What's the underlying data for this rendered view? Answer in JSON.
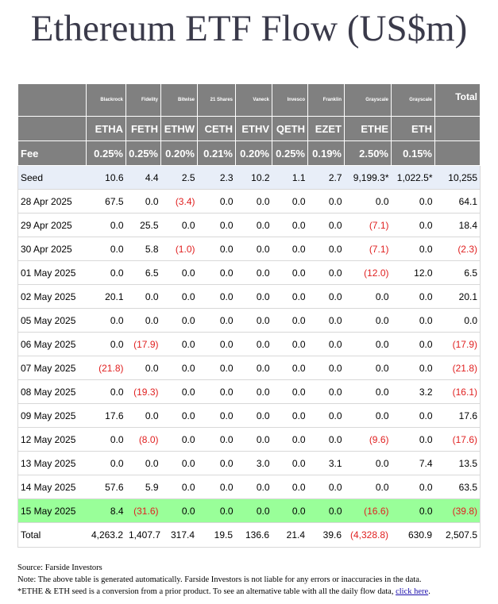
{
  "title": "Ethereum ETF Flow (US$m)",
  "issuers": [
    "Blackrock",
    "Fidelity",
    "Bitwise",
    "21 Shares",
    "Vaneck",
    "Invesco",
    "Franklin",
    "Grayscale",
    "Grayscale"
  ],
  "total_label": "Total",
  "tickers": [
    "ETHA",
    "FETH",
    "ETHW",
    "CETH",
    "ETHV",
    "QETH",
    "EZET",
    "ETHE",
    "ETH"
  ],
  "fee_label": "Fee",
  "fees": [
    "0.25%",
    "0.25%",
    "0.20%",
    "0.21%",
    "0.20%",
    "0.25%",
    "0.19%",
    "2.50%",
    "0.15%"
  ],
  "rows": [
    {
      "label": "Seed",
      "values": [
        "10.6",
        "4.4",
        "2.5",
        "2.3",
        "10.2",
        "1.1",
        "2.7",
        "9,199.3*",
        "1,022.5*"
      ],
      "total": "10,255"
    },
    {
      "label": "28 Apr 2025",
      "values": [
        "67.5",
        "0.0",
        "(3.4)",
        "0.0",
        "0.0",
        "0.0",
        "0.0",
        "0.0",
        "0.0"
      ],
      "total": "64.1"
    },
    {
      "label": "29 Apr 2025",
      "values": [
        "0.0",
        "25.5",
        "0.0",
        "0.0",
        "0.0",
        "0.0",
        "0.0",
        "(7.1)",
        "0.0"
      ],
      "total": "18.4"
    },
    {
      "label": "30 Apr 2025",
      "values": [
        "0.0",
        "5.8",
        "(1.0)",
        "0.0",
        "0.0",
        "0.0",
        "0.0",
        "(7.1)",
        "0.0"
      ],
      "total": "(2.3)"
    },
    {
      "label": "01 May 2025",
      "values": [
        "0.0",
        "6.5",
        "0.0",
        "0.0",
        "0.0",
        "0.0",
        "0.0",
        "(12.0)",
        "12.0"
      ],
      "total": "6.5"
    },
    {
      "label": "02 May 2025",
      "values": [
        "20.1",
        "0.0",
        "0.0",
        "0.0",
        "0.0",
        "0.0",
        "0.0",
        "0.0",
        "0.0"
      ],
      "total": "20.1"
    },
    {
      "label": "05 May 2025",
      "values": [
        "0.0",
        "0.0",
        "0.0",
        "0.0",
        "0.0",
        "0.0",
        "0.0",
        "0.0",
        "0.0"
      ],
      "total": "0.0"
    },
    {
      "label": "06 May 2025",
      "values": [
        "0.0",
        "(17.9)",
        "0.0",
        "0.0",
        "0.0",
        "0.0",
        "0.0",
        "0.0",
        "0.0"
      ],
      "total": "(17.9)"
    },
    {
      "label": "07 May 2025",
      "values": [
        "(21.8)",
        "0.0",
        "0.0",
        "0.0",
        "0.0",
        "0.0",
        "0.0",
        "0.0",
        "0.0"
      ],
      "total": "(21.8)"
    },
    {
      "label": "08 May 2025",
      "values": [
        "0.0",
        "(19.3)",
        "0.0",
        "0.0",
        "0.0",
        "0.0",
        "0.0",
        "0.0",
        "3.2"
      ],
      "total": "(16.1)"
    },
    {
      "label": "09 May 2025",
      "values": [
        "17.6",
        "0.0",
        "0.0",
        "0.0",
        "0.0",
        "0.0",
        "0.0",
        "0.0",
        "0.0"
      ],
      "total": "17.6"
    },
    {
      "label": "12 May 2025",
      "values": [
        "0.0",
        "(8.0)",
        "0.0",
        "0.0",
        "0.0",
        "0.0",
        "0.0",
        "(9.6)",
        "0.0"
      ],
      "total": "(17.6)"
    },
    {
      "label": "13 May 2025",
      "values": [
        "0.0",
        "0.0",
        "0.0",
        "0.0",
        "3.0",
        "0.0",
        "3.1",
        "0.0",
        "7.4"
      ],
      "total": "13.5"
    },
    {
      "label": "14 May 2025",
      "values": [
        "57.6",
        "5.9",
        "0.0",
        "0.0",
        "0.0",
        "0.0",
        "0.0",
        "0.0",
        "0.0"
      ],
      "total": "63.5"
    },
    {
      "label": "15 May 2025",
      "values": [
        "8.4",
        "(31.6)",
        "0.0",
        "0.0",
        "0.0",
        "0.0",
        "0.0",
        "(16.6)",
        "0.0"
      ],
      "total": "(39.8)",
      "highlight": true
    }
  ],
  "totals": {
    "label": "Total",
    "values": [
      "4,263.2",
      "1,407.7",
      "317.4",
      "19.5",
      "136.6",
      "21.4",
      "39.6",
      "(4,328.8)",
      "630.9"
    ],
    "total": "2,507.5"
  },
  "notes": {
    "source": "Source: Farside Investors",
    "note1": "Note: The above table is generated automatically. Farside Investors is not liable for any errors or inaccuracies in the data.",
    "note2": "*ETHE & ETH seed is a conversion from a prior product.  To see an alternative table with all the daily flow data, ",
    "link_text": "click here",
    "note2_end": "."
  },
  "colors": {
    "header_bg": "#808080",
    "negative": "#e02020",
    "highlight_row": "#99ff99",
    "seed_row": "#e8eef8"
  }
}
